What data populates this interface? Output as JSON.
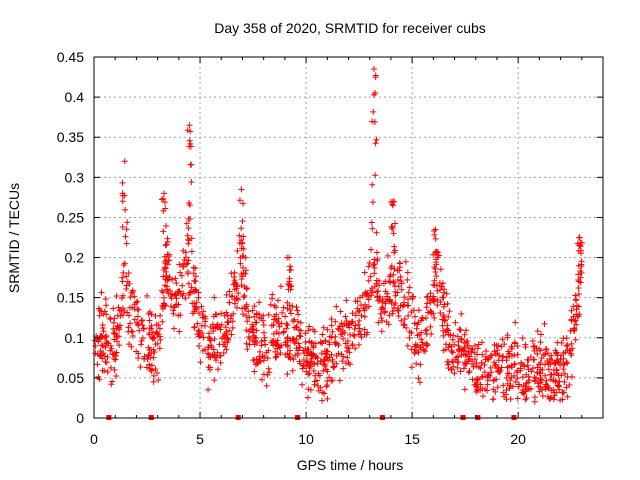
{
  "chart_data": {
    "type": "scatter",
    "title": "Day 358 of 2020, SRMTID for receiver cubs",
    "xlabel": "GPS time / hours",
    "ylabel": "SRMTID / TECUs",
    "xlim": [
      0,
      24
    ],
    "ylim": [
      0,
      0.45
    ],
    "x_ticks": [
      0,
      5,
      10,
      15,
      20
    ],
    "x_tick_labels": [
      "0",
      "5",
      "10",
      "15",
      "20"
    ],
    "y_ticks": [
      0,
      0.05,
      0.1,
      0.15,
      0.2,
      0.25,
      0.3,
      0.35,
      0.4,
      0.45
    ],
    "y_tick_labels": [
      "0",
      "0.05",
      "0.1",
      "0.15",
      "0.2",
      "0.25",
      "0.3",
      "0.35",
      "0.4",
      "0.45"
    ],
    "grid": true,
    "marker": "+",
    "color": "#ff0000",
    "trend": [
      [
        0.0,
        0.095
      ],
      [
        0.4,
        0.1
      ],
      [
        0.8,
        0.085
      ],
      [
        1.2,
        0.11
      ],
      [
        1.4,
        0.17
      ],
      [
        1.6,
        0.14
      ],
      [
        2.0,
        0.11
      ],
      [
        2.5,
        0.1
      ],
      [
        2.8,
        0.08
      ],
      [
        3.1,
        0.1
      ],
      [
        3.3,
        0.15
      ],
      [
        3.5,
        0.2
      ],
      [
        3.8,
        0.13
      ],
      [
        4.1,
        0.16
      ],
      [
        4.4,
        0.21
      ],
      [
        4.7,
        0.15
      ],
      [
        5.0,
        0.11
      ],
      [
        5.4,
        0.09
      ],
      [
        5.8,
        0.1
      ],
      [
        6.2,
        0.11
      ],
      [
        6.6,
        0.15
      ],
      [
        6.9,
        0.19
      ],
      [
        7.2,
        0.13
      ],
      [
        7.6,
        0.1
      ],
      [
        8.0,
        0.09
      ],
      [
        8.5,
        0.11
      ],
      [
        9.0,
        0.1
      ],
      [
        9.5,
        0.11
      ],
      [
        10.0,
        0.08
      ],
      [
        10.5,
        0.07
      ],
      [
        11.0,
        0.075
      ],
      [
        11.5,
        0.09
      ],
      [
        12.0,
        0.1
      ],
      [
        12.5,
        0.12
      ],
      [
        12.9,
        0.16
      ],
      [
        13.2,
        0.19
      ],
      [
        13.6,
        0.14
      ],
      [
        14.0,
        0.16
      ],
      [
        14.4,
        0.17
      ],
      [
        14.8,
        0.13
      ],
      [
        15.2,
        0.1
      ],
      [
        15.6,
        0.11
      ],
      [
        16.0,
        0.15
      ],
      [
        16.3,
        0.17
      ],
      [
        16.6,
        0.11
      ],
      [
        17.0,
        0.08
      ],
      [
        17.5,
        0.08
      ],
      [
        18.0,
        0.065
      ],
      [
        18.5,
        0.055
      ],
      [
        19.0,
        0.06
      ],
      [
        19.5,
        0.065
      ],
      [
        20.0,
        0.055
      ],
      [
        20.5,
        0.06
      ],
      [
        21.0,
        0.065
      ],
      [
        21.5,
        0.055
      ],
      [
        22.0,
        0.06
      ],
      [
        22.4,
        0.08
      ],
      [
        22.7,
        0.12
      ],
      [
        23.0,
        0.17
      ]
    ],
    "spikes": [
      {
        "x": 1.45,
        "ymax": 0.32
      },
      {
        "x": 3.3,
        "ymax": 0.28
      },
      {
        "x": 4.5,
        "ymax": 0.365
      },
      {
        "x": 6.95,
        "ymax": 0.285
      },
      {
        "x": 9.2,
        "ymax": 0.2
      },
      {
        "x": 13.2,
        "ymax": 0.435
      },
      {
        "x": 14.1,
        "ymax": 0.27
      },
      {
        "x": 16.1,
        "ymax": 0.235
      },
      {
        "x": 22.9,
        "ymax": 0.225
      }
    ],
    "gap_markers_x": [
      0.7,
      2.7,
      6.8,
      9.6,
      13.6,
      17.4,
      18.1,
      19.8
    ]
  }
}
